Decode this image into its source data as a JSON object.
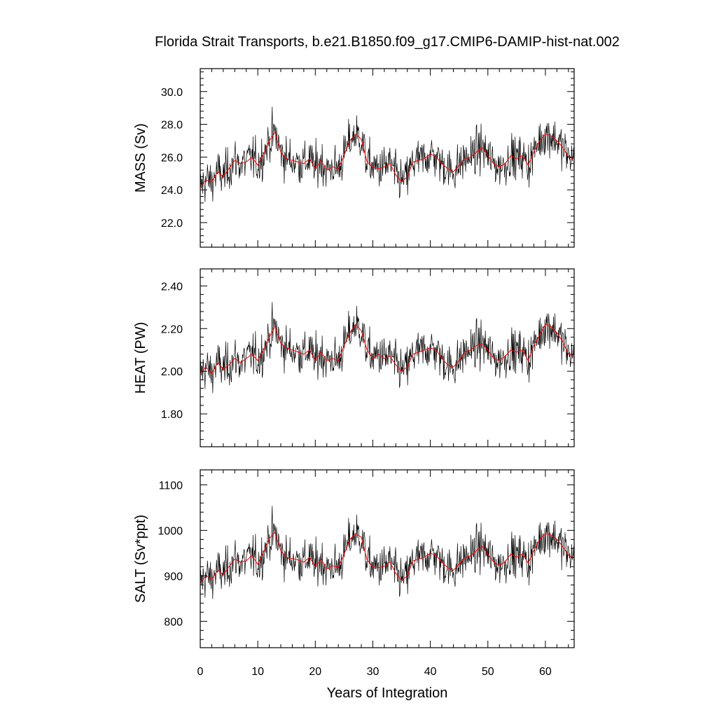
{
  "chart_data": {
    "type": "line",
    "title": "Florida Strait Transports, b.e21.B1850.f09_g17.CMIP6-DAMIP-hist-nat.002",
    "xlabel": "Years of Integration",
    "xlim": [
      0,
      65
    ],
    "xticks": [
      0,
      10,
      20,
      30,
      40,
      50,
      60
    ],
    "xtick_labels": [
      "0",
      "10",
      "20",
      "30",
      "40",
      "50",
      "60"
    ],
    "series_style": {
      "monthly": "#000000",
      "running_mean": "#ff0000"
    },
    "panels": [
      {
        "id": "mass",
        "ylabel": "MASS (Sv)",
        "ylim": [
          20.5,
          31.4
        ],
        "yticks": [
          22.0,
          24.0,
          26.0,
          28.0,
          30.0
        ],
        "ytick_labels": [
          "22.0",
          "24.0",
          "26.0",
          "28.0",
          "30.0"
        ],
        "running_mean": {
          "x": [
            0,
            1,
            2,
            3,
            4,
            5,
            6,
            7,
            8,
            9,
            10,
            11,
            12,
            13,
            14,
            15,
            16,
            17,
            18,
            19,
            20,
            21,
            22,
            23,
            24,
            25,
            26,
            27,
            28,
            29,
            30,
            31,
            32,
            33,
            34,
            35,
            36,
            37,
            38,
            39,
            40,
            41,
            42,
            43,
            44,
            45,
            46,
            47,
            48,
            49,
            50,
            51,
            52,
            53,
            54,
            55,
            56,
            57,
            58,
            59,
            60,
            61,
            62,
            63,
            64,
            65
          ],
          "y": [
            24.2,
            24.6,
            24.5,
            25.1,
            24.8,
            25.3,
            25.8,
            25.6,
            25.7,
            26.0,
            25.5,
            26.2,
            27.0,
            27.5,
            26.3,
            25.9,
            25.8,
            25.7,
            25.6,
            25.9,
            25.3,
            25.8,
            25.2,
            25.4,
            25.3,
            26.1,
            27.0,
            27.4,
            27.1,
            25.7,
            25.4,
            25.3,
            25.4,
            25.6,
            24.9,
            24.5,
            24.8,
            25.7,
            25.8,
            25.9,
            26.2,
            26.0,
            25.6,
            25.3,
            25.1,
            25.5,
            25.9,
            26.0,
            26.3,
            26.6,
            26.1,
            25.6,
            25.4,
            25.6,
            26.1,
            25.9,
            26.1,
            25.5,
            26.3,
            27.0,
            27.4,
            27.3,
            27.0,
            26.6,
            26.0,
            25.9
          ]
        }
      },
      {
        "id": "heat",
        "ylabel": "HEAT (PW)",
        "ylim": [
          1.646,
          2.48
        ],
        "yticks": [
          1.8,
          2.0,
          2.2,
          2.4
        ],
        "ytick_labels": [
          "1.80",
          "2.00",
          "2.20",
          "2.40"
        ],
        "running_mean": {
          "x": [
            0,
            1,
            2,
            3,
            4,
            5,
            6,
            7,
            8,
            9,
            10,
            11,
            12,
            13,
            14,
            15,
            16,
            17,
            18,
            19,
            20,
            21,
            22,
            23,
            24,
            25,
            26,
            27,
            28,
            29,
            30,
            31,
            32,
            33,
            34,
            35,
            36,
            37,
            38,
            39,
            40,
            41,
            42,
            43,
            44,
            45,
            46,
            47,
            48,
            49,
            50,
            51,
            52,
            53,
            54,
            55,
            56,
            57,
            58,
            59,
            60,
            61,
            62,
            63,
            64,
            65
          ],
          "y": [
            1.99,
            2.02,
            1.99,
            2.04,
            2.01,
            2.03,
            2.06,
            2.04,
            2.06,
            2.08,
            2.05,
            2.1,
            2.16,
            2.21,
            2.13,
            2.11,
            2.1,
            2.09,
            2.08,
            2.1,
            2.05,
            2.09,
            2.05,
            2.06,
            2.05,
            2.12,
            2.18,
            2.22,
            2.19,
            2.1,
            2.06,
            2.08,
            2.06,
            2.07,
            2.03,
            2.0,
            2.02,
            2.08,
            2.09,
            2.1,
            2.11,
            2.1,
            2.06,
            2.03,
            2.02,
            2.05,
            2.09,
            2.1,
            2.12,
            2.13,
            2.1,
            2.06,
            2.05,
            2.07,
            2.1,
            2.09,
            2.1,
            2.05,
            2.12,
            2.17,
            2.22,
            2.21,
            2.18,
            2.14,
            2.08,
            2.07
          ]
        }
      },
      {
        "id": "salt",
        "ylabel": "SALT (Sv*ppt)",
        "ylim": [
          742,
          1133
        ],
        "yticks": [
          800,
          900,
          1000,
          1100
        ],
        "ytick_labels": [
          "800",
          "900",
          "1000",
          "1100"
        ],
        "running_mean": {
          "x": [
            0,
            1,
            2,
            3,
            4,
            5,
            6,
            7,
            8,
            9,
            10,
            11,
            12,
            13,
            14,
            15,
            16,
            17,
            18,
            19,
            20,
            21,
            22,
            23,
            24,
            25,
            26,
            27,
            28,
            29,
            30,
            31,
            32,
            33,
            34,
            35,
            36,
            37,
            38,
            39,
            40,
            41,
            42,
            43,
            44,
            45,
            46,
            47,
            48,
            49,
            50,
            51,
            52,
            53,
            54,
            55,
            56,
            57,
            58,
            59,
            60,
            61,
            62,
            63,
            64,
            65
          ],
          "y": [
            885,
            900,
            893,
            912,
            903,
            920,
            937,
            930,
            933,
            945,
            925,
            952,
            982,
            995,
            955,
            940,
            938,
            935,
            930,
            941,
            920,
            937,
            915,
            922,
            919,
            947,
            980,
            993,
            985,
            935,
            920,
            918,
            921,
            930,
            905,
            890,
            900,
            933,
            937,
            941,
            950,
            945,
            930,
            918,
            912,
            926,
            940,
            944,
            955,
            965,
            948,
            930,
            923,
            931,
            948,
            941,
            948,
            928,
            955,
            980,
            993,
            990,
            980,
            965,
            945,
            940
          ]
        }
      }
    ]
  }
}
